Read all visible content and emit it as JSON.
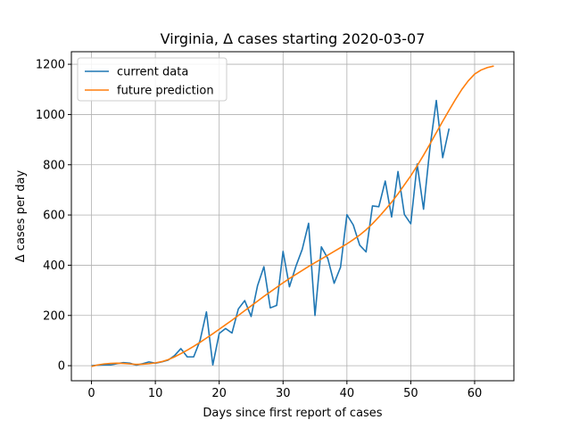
{
  "chart_data": {
    "type": "line",
    "title": "Virginia, Δ cases starting 2020-03-07",
    "xlabel": "Days since first report of cases",
    "ylabel": "Δ cases per day",
    "xlim": [
      -3.15,
      66.15
    ],
    "ylim": [
      -60,
      1250
    ],
    "xticks": [
      0,
      10,
      20,
      30,
      40,
      50,
      60
    ],
    "yticks": [
      0,
      200,
      400,
      600,
      800,
      1000,
      1200
    ],
    "grid": true,
    "legend": "top-left",
    "series": [
      {
        "name": "current data",
        "color": "#1f77b4",
        "x": [
          0,
          1,
          2,
          3,
          4,
          5,
          6,
          7,
          8,
          9,
          10,
          11,
          12,
          13,
          14,
          15,
          16,
          17,
          18,
          19,
          20,
          21,
          22,
          23,
          24,
          25,
          26,
          27,
          28,
          29,
          30,
          31,
          32,
          33,
          34,
          35,
          36,
          37,
          38,
          39,
          40,
          41,
          42,
          43,
          44,
          45,
          46,
          47,
          48,
          49,
          50,
          51,
          52,
          53,
          54,
          55,
          56
        ],
        "y": [
          0,
          2,
          3,
          3,
          8,
          12,
          10,
          2,
          8,
          15,
          10,
          15,
          22,
          40,
          68,
          35,
          35,
          100,
          214,
          3,
          128,
          148,
          130,
          226,
          259,
          196,
          318,
          394,
          230,
          240,
          455,
          314,
          395,
          463,
          567,
          200,
          473,
          427,
          328,
          392,
          601,
          560,
          480,
          453,
          636,
          633,
          735,
          592,
          773,
          602,
          565,
          803,
          623,
          867,
          1056,
          828,
          944
        ]
      },
      {
        "name": "future prediction",
        "color": "#ff7f0e",
        "x": [
          0,
          1,
          2,
          3,
          4,
          5,
          6,
          7,
          8,
          9,
          10,
          11,
          12,
          13,
          14,
          15,
          16,
          17,
          18,
          19,
          20,
          21,
          22,
          23,
          24,
          25,
          26,
          27,
          28,
          29,
          30,
          31,
          32,
          33,
          34,
          35,
          36,
          37,
          38,
          39,
          40,
          41,
          42,
          43,
          44,
          45,
          46,
          47,
          48,
          49,
          50,
          51,
          52,
          53,
          54,
          55,
          56,
          57,
          58,
          59,
          60,
          61,
          62,
          63
        ],
        "y": [
          -3,
          3,
          7,
          9,
          10,
          9,
          7,
          5,
          6,
          8,
          11,
          16,
          24,
          35,
          48,
          62,
          77,
          93,
          110,
          127,
          145,
          163,
          181,
          200,
          219,
          238,
          257,
          276,
          294,
          312,
          330,
          347,
          363,
          379,
          395,
          410,
          425,
          440,
          455,
          470,
          485,
          502,
          520,
          541,
          565,
          592,
          621,
          651,
          684,
          720,
          756,
          796,
          838,
          882,
          928,
          973,
          1017,
          1060,
          1100,
          1134,
          1161,
          1177,
          1187,
          1193
        ]
      }
    ]
  }
}
